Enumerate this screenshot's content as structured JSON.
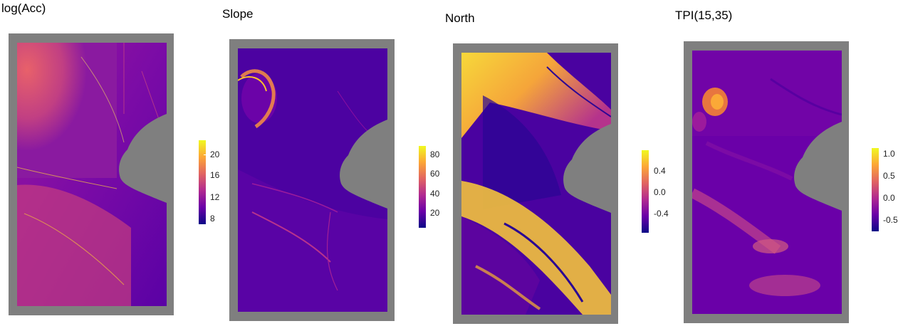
{
  "panels": [
    {
      "title": "log(Acc)",
      "legend_ticks": [
        "20",
        "16",
        "12",
        "8"
      ]
    },
    {
      "title": "Slope",
      "legend_ticks": [
        "80",
        "60",
        "40",
        "20"
      ]
    },
    {
      "title": "North",
      "legend_ticks": [
        "0.4",
        "0.0",
        "-0.4"
      ]
    },
    {
      "title": "TPI(15,35)",
      "legend_ticks": [
        "1.0",
        "0.5",
        "0.0",
        "-0.5"
      ]
    }
  ],
  "colors": {
    "frame": "#7f7f7f",
    "palette": [
      "#0d0887",
      "#6a00a8",
      "#b12a90",
      "#e16462",
      "#fca636",
      "#f0f921"
    ]
  }
}
